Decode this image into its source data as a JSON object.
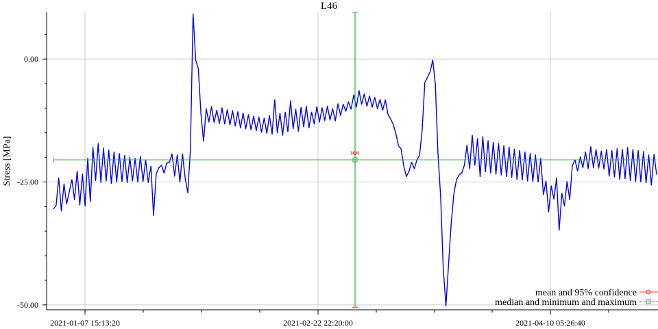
{
  "chart_data": {
    "type": "line",
    "title": "L46",
    "xlabel": "",
    "ylabel": "Stress [MPa]",
    "x_tick_labels": [
      "2021-01-07 15:13:20",
      "2021-02-22 22:20:00",
      "2021-04-10 05:26:40"
    ],
    "y_ticks": [
      0,
      -25,
      -50
    ],
    "y_tick_labels": [
      "0.00",
      "-25.00",
      "-50.00"
    ],
    "ylim": [
      -51,
      9.5
    ],
    "grid": true,
    "legend_position": "bottom-right",
    "colors": {
      "series": "#0000ee",
      "mean": "#ee3333",
      "median": "#33aa33",
      "grid": "#cccccc"
    },
    "series": [
      {
        "values": [
          -30.5,
          -29.8,
          -24.2,
          -30.9,
          -25.4,
          -29.5,
          -27,
          -24.5,
          -28.6,
          -22.8,
          -29.7,
          -23.4,
          -29.9,
          -20.2,
          -29,
          -18,
          -24.7,
          -17.2,
          -25.1,
          -18.1,
          -24.8,
          -18.5,
          -25.3,
          -18.9,
          -25,
          -19.2,
          -24.9,
          -19.6,
          -25.1,
          -20,
          -24.8,
          -20.2,
          -25,
          -19.8,
          -24.9,
          -20.5,
          -25.1,
          -21.8,
          -31.8,
          -23.4,
          -22.1,
          -21.6,
          -23.2,
          -21.2,
          -21,
          -19.3,
          -23.8,
          -19.5,
          -25,
          -19.3,
          -24.2,
          -27.2,
          -18.4,
          9.2,
          -0.2,
          -2,
          -11.2,
          -16.7,
          -10.1,
          -12.8,
          -9.7,
          -12.9,
          -10.4,
          -13.1,
          -9.9,
          -13.2,
          -10.3,
          -13.4,
          -10.5,
          -13.6,
          -10.7,
          -14,
          -11,
          -14.2,
          -11.3,
          -14.4,
          -11.6,
          -14.6,
          -11.8,
          -14.9,
          -12,
          -15.1,
          -11.5,
          -15.3,
          -8.3,
          -15,
          -11,
          -15.5,
          -10.8,
          -14.8,
          -8.5,
          -14.2,
          -10.2,
          -14.7,
          -9.8,
          -13.8,
          -9.6,
          -14,
          -10.8,
          -13.2,
          -9.7,
          -12.8,
          -9.9,
          -12.5,
          -9.6,
          -12.4,
          -10.1,
          -12.6,
          -9.1,
          -11.5,
          -9.2,
          -10.6,
          -8.7,
          -10.2,
          -7.3,
          -9.8,
          -6.4,
          -9.2,
          -7.1,
          -9.6,
          -7.5,
          -9.8,
          -7.8,
          -10.1,
          -8.2,
          -10.4,
          -8.3,
          -11.2,
          -12.2,
          -13.3,
          -15.2,
          -17.6,
          -18.3,
          -21.8,
          -23.9,
          -22.8,
          -21,
          -22.3,
          -20.5,
          -19.6,
          -14.3,
          -4.8,
          -3.7,
          -2.6,
          -0.2,
          -5.2,
          -19.3,
          -28,
          -42.6,
          -50.2,
          -41.8,
          -33.4,
          -27.5,
          -24.6,
          -23.6,
          -23.2,
          -21.6,
          -17.5,
          -22.3,
          -15.5,
          -21.6,
          -16.2,
          -23.9,
          -15.8,
          -22.9,
          -16.6,
          -23.2,
          -16.9,
          -23.4,
          -17.2,
          -23.6,
          -17.6,
          -23.9,
          -17.9,
          -24.1,
          -18.3,
          -24.5,
          -18.6,
          -24.6,
          -18.9,
          -24.8,
          -19.2,
          -24.9,
          -19.5,
          -25,
          -20.2,
          -27.6,
          -24.8,
          -31.1,
          -25.8,
          -28.5,
          -24.2,
          -34.8,
          -27.3,
          -29.9,
          -24.9,
          -28.6,
          -21.7,
          -20.5,
          -22.8,
          -19.9,
          -22.1,
          -18.9,
          -22.3,
          -17.8,
          -22.1,
          -18.4,
          -22.2,
          -18.7,
          -22.4,
          -18.4,
          -23.8,
          -18.6,
          -24,
          -18.2,
          -24.5,
          -18.4,
          -24.3,
          -18,
          -24.7,
          -18.4,
          -24.9,
          -18.6,
          -25,
          -18.8,
          -25.2,
          -19.5,
          -25.6,
          -19.4,
          -23.5
        ],
        "x_range_ticks": [
          0,
          101.6
        ]
      }
    ],
    "summary": {
      "mean": {
        "value": -19.1,
        "ci_low": -19.35,
        "ci_high": -18.85,
        "x": 50.8
      },
      "median": {
        "value": -20.5,
        "min": -50.5,
        "max": 9.5,
        "x": 50.8
      }
    },
    "legend": [
      {
        "label": "mean and 95% confidence",
        "key": "mean"
      },
      {
        "label": "median and minimum and maximum",
        "key": "median"
      }
    ]
  }
}
